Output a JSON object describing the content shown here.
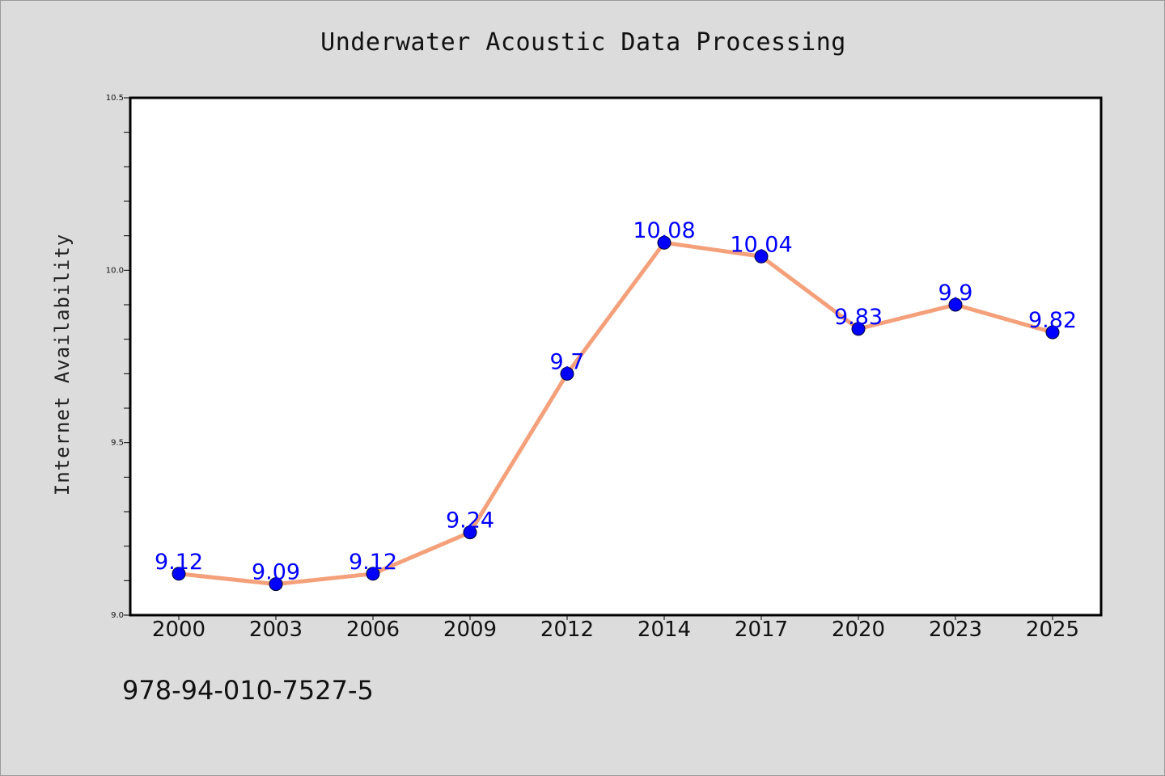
{
  "title": "Underwater Acoustic Data Processing",
  "isbn": "978-94-010-7527-5",
  "colors": {
    "background": "#dcdcdc",
    "plot_background": "#ffffff",
    "line": "#f4a07a",
    "marker": "#0000ff",
    "data_label": "#0000ff"
  },
  "chart_data": {
    "type": "line",
    "title": "Underwater Acoustic Data Processing",
    "xlabel": "",
    "ylabel": "Internet Availability",
    "categories": [
      "2000",
      "2003",
      "2006",
      "2009",
      "2012",
      "2014",
      "2017",
      "2020",
      "2023",
      "2025"
    ],
    "series": [
      {
        "values": [
          9.12,
          9.09,
          9.12,
          9.24,
          9.7,
          10.08,
          10.04,
          9.83,
          9.9,
          9.82
        ],
        "data_labels": [
          "9.12",
          "9.09",
          "9.12",
          "9.24",
          "9.7",
          "10.08",
          "10.04",
          "9.83",
          "9.9",
          "9.82"
        ]
      }
    ],
    "ylim": [
      9.0,
      10.5
    ],
    "yticks": [
      "9.0",
      "9.5",
      "10.0",
      "10.5"
    ],
    "yticks_values": [
      9.0,
      9.5,
      10.0,
      10.5
    ],
    "y_minor_step": 0.1,
    "grid": false,
    "legend": "none"
  }
}
